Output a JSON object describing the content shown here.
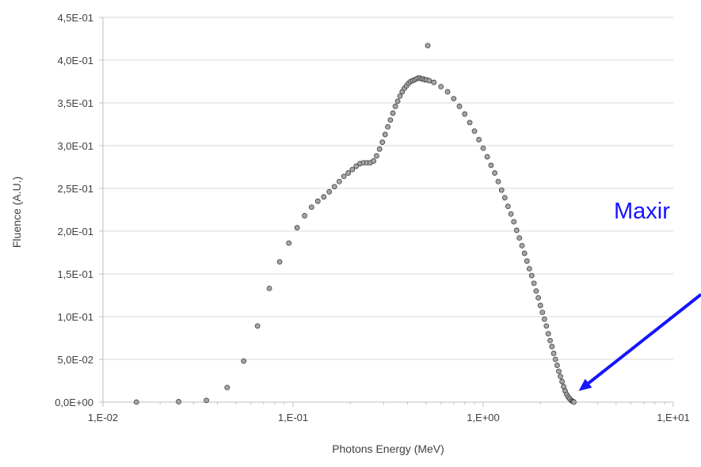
{
  "chart_data": {
    "type": "scatter",
    "title": "",
    "xlabel": "Photons Energy (MeV)",
    "ylabel": "Fluence  (A.U.)",
    "xscale": "log",
    "xlim": [
      0.01,
      10
    ],
    "ylim": [
      0,
      0.45
    ],
    "grid": "horizontal",
    "legend": "none",
    "x_ticks": [
      0.01,
      0.1,
      1,
      10
    ],
    "x_tick_labels": [
      "1,E-02",
      "1,E-01",
      "1,E+00",
      "1,E+01"
    ],
    "y_ticks": [
      0,
      0.05,
      0.1,
      0.15,
      0.2,
      0.25,
      0.3,
      0.35,
      0.4,
      0.45
    ],
    "y_tick_labels": [
      "0,0E+00",
      "5,0E-02",
      "1,0E-01",
      "1,5E-01",
      "2,0E-01",
      "2,5E-01",
      "3,0E-01",
      "3,5E-01",
      "4,0E-01",
      "4,5E-01"
    ],
    "series": [
      {
        "marker": "circle",
        "color": "#a6a6a6",
        "edge_color": "#404040",
        "x": [
          0.015,
          0.025,
          0.035,
          0.045,
          0.055,
          0.065,
          0.075,
          0.085,
          0.095,
          0.105,
          0.115,
          0.125,
          0.135,
          0.145,
          0.155,
          0.165,
          0.175,
          0.185,
          0.195,
          0.205,
          0.215,
          0.225,
          0.235,
          0.245,
          0.255,
          0.265,
          0.275,
          0.285,
          0.295,
          0.305,
          0.315,
          0.325,
          0.335,
          0.345,
          0.355,
          0.365,
          0.375,
          0.385,
          0.395,
          0.405,
          0.415,
          0.425,
          0.435,
          0.445,
          0.455,
          0.465,
          0.475,
          0.485,
          0.495,
          0.505,
          0.511
        ],
        "y": [
          0.0,
          0.0005,
          0.002,
          0.017,
          0.048,
          0.089,
          0.133,
          0.164,
          0.186,
          0.204,
          0.218,
          0.228,
          0.235,
          0.24,
          0.246,
          0.252,
          0.258,
          0.264,
          0.268,
          0.272,
          0.276,
          0.279,
          0.28,
          0.28,
          0.28,
          0.282,
          0.288,
          0.296,
          0.304,
          0.313,
          0.322,
          0.33,
          0.338,
          0.346,
          0.352,
          0.358,
          0.363,
          0.367,
          0.37,
          0.373,
          0.375,
          0.376,
          0.377,
          0.378,
          0.379,
          0.379,
          0.378,
          0.378,
          0.377,
          0.377,
          0.417
        ]
      },
      {
        "marker": "circle",
        "color": "#a6a6a6",
        "edge_color": "#404040",
        "x": [
          0.52,
          0.55,
          0.6,
          0.65,
          0.7,
          0.75,
          0.8,
          0.85,
          0.9,
          0.95,
          1.0,
          1.05,
          1.1,
          1.15,
          1.2,
          1.25,
          1.3,
          1.35,
          1.4,
          1.45,
          1.5,
          1.55,
          1.6,
          1.65,
          1.7,
          1.75,
          1.8,
          1.85,
          1.9,
          1.95,
          2.0,
          2.05,
          2.1,
          2.15,
          2.2,
          2.25,
          2.3,
          2.35,
          2.4,
          2.45,
          2.5,
          2.55,
          2.6,
          2.65,
          2.7,
          2.75,
          2.8,
          2.85,
          2.9,
          2.95,
          2.98,
          3.0
        ],
        "y": [
          0.376,
          0.374,
          0.369,
          0.363,
          0.355,
          0.346,
          0.337,
          0.327,
          0.317,
          0.307,
          0.297,
          0.287,
          0.277,
          0.268,
          0.258,
          0.248,
          0.239,
          0.229,
          0.22,
          0.211,
          0.201,
          0.192,
          0.183,
          0.174,
          0.165,
          0.156,
          0.148,
          0.139,
          0.13,
          0.122,
          0.113,
          0.105,
          0.097,
          0.089,
          0.08,
          0.072,
          0.065,
          0.057,
          0.05,
          0.043,
          0.036,
          0.03,
          0.024,
          0.018,
          0.013,
          0.009,
          0.006,
          0.004,
          0.002,
          0.001,
          0.0005,
          0.0
        ]
      }
    ],
    "annotations": [
      {
        "text": "Maxir",
        "color": "#1414ff",
        "arrow_to_x": 3.0,
        "arrow_to_y": 0.0
      }
    ]
  }
}
